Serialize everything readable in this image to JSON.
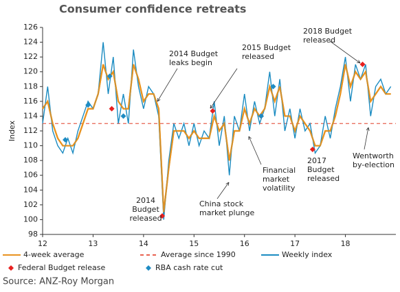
{
  "chart_data": {
    "type": "line",
    "title": "Consumer confidence retreats",
    "y_label": "Index",
    "source": "Source: ANZ-Roy Morgan",
    "xlim": [
      12,
      19
    ],
    "xticks": [
      12,
      13,
      14,
      15,
      16,
      17,
      18
    ],
    "ylim": [
      98,
      126
    ],
    "yticks": [
      98,
      100,
      102,
      104,
      106,
      108,
      110,
      112,
      114,
      116,
      118,
      120,
      122,
      124,
      126
    ],
    "x": [
      12.0,
      12.1,
      12.2,
      12.3,
      12.4,
      12.5,
      12.6,
      12.7,
      12.8,
      12.9,
      13.0,
      13.1,
      13.2,
      13.3,
      13.4,
      13.5,
      13.6,
      13.7,
      13.8,
      13.9,
      14.0,
      14.1,
      14.2,
      14.3,
      14.4,
      14.5,
      14.6,
      14.7,
      14.8,
      14.9,
      15.0,
      15.1,
      15.2,
      15.3,
      15.4,
      15.5,
      15.6,
      15.7,
      15.8,
      15.9,
      16.0,
      16.1,
      16.2,
      16.3,
      16.4,
      16.5,
      16.6,
      16.7,
      16.8,
      16.9,
      17.0,
      17.1,
      17.2,
      17.3,
      17.4,
      17.5,
      17.6,
      17.7,
      17.8,
      17.9,
      18.0,
      18.1,
      18.2,
      18.3,
      18.4,
      18.5,
      18.6,
      18.7,
      18.8,
      18.9
    ],
    "series": [
      {
        "name": "4-week average",
        "color": "#e8921f",
        "values": [
          115,
          116,
          113,
          111,
          110,
          110,
          110,
          111,
          113,
          115,
          115,
          117,
          121,
          119,
          120,
          116,
          115,
          115,
          121,
          119,
          116,
          117,
          117,
          115,
          101,
          107,
          112,
          112,
          112,
          111,
          112,
          111,
          111,
          111,
          114,
          112,
          113,
          108,
          112,
          112,
          115,
          113,
          115,
          114,
          115,
          118,
          116,
          118,
          114,
          114,
          112,
          114,
          113,
          112,
          110,
          110,
          112,
          112,
          114,
          117,
          121,
          118,
          120,
          119,
          120,
          116,
          117,
          118,
          117,
          117
        ]
      },
      {
        "name": "Weekly index",
        "color": "#1a8bc1",
        "values": [
          113,
          118,
          112,
          110,
          109,
          111,
          109,
          112,
          114,
          116,
          115,
          117,
          124,
          117,
          122,
          113,
          117,
          113,
          123,
          118,
          115,
          118,
          117,
          114,
          100,
          108,
          113,
          111,
          113,
          110,
          113,
          110,
          112,
          111,
          116,
          110,
          114,
          106,
          114,
          112,
          117,
          112,
          116,
          113,
          115,
          120,
          114,
          119,
          112,
          115,
          111,
          115,
          112,
          113,
          109,
          110,
          114,
          111,
          115,
          118,
          122,
          116,
          121,
          119,
          121,
          114,
          118,
          119,
          117,
          118
        ]
      }
    ],
    "reference_line": {
      "name": "Average since 1990",
      "value": 113,
      "color": "#e8614f"
    },
    "markers": [
      {
        "name": "Federal Budget release",
        "color": "#e8201f",
        "x": [
          13.37,
          14.37,
          15.37,
          16.33,
          17.35,
          18.34
        ],
        "values": [
          115,
          100.5,
          114.7,
          114,
          109.5,
          121
        ]
      },
      {
        "name": "RBA cash rate cut",
        "color": "#1e8bc3",
        "x": [
          12.45,
          12.9,
          13.33,
          13.6,
          16.33,
          16.57
        ],
        "values": [
          110.8,
          115.5,
          119.4,
          114,
          114,
          118
        ]
      }
    ],
    "annotations": [
      [
        "2014 Budget",
        "leaks begin"
      ],
      [
        "2015 Budget",
        "released"
      ],
      [
        "2018 Budget",
        "released"
      ],
      [
        "2014",
        "Budget",
        "released"
      ],
      [
        "China stock",
        "market plunge"
      ],
      [
        "Financial",
        "market",
        "volatility"
      ],
      [
        "2017",
        "Budget",
        "released"
      ],
      [
        "Wentworth",
        "by-election"
      ]
    ]
  }
}
